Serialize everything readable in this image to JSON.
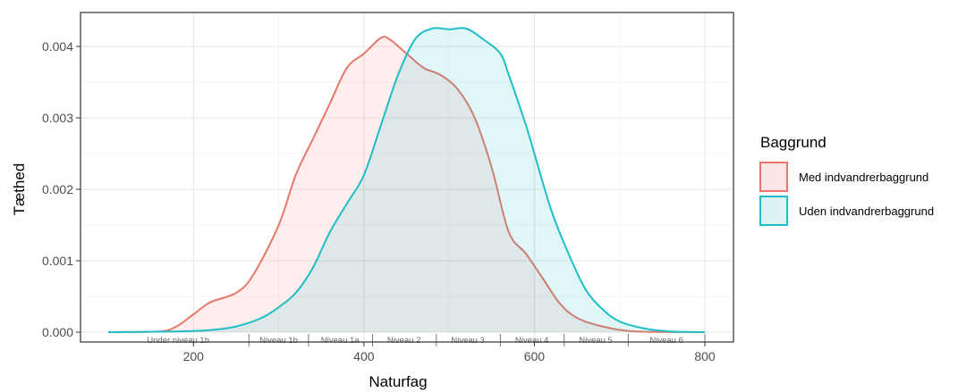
{
  "chart_data": {
    "type": "area",
    "xlabel": "Naturfag",
    "ylabel": "Tæthed",
    "xlim": [
      100,
      800
    ],
    "ylim": [
      0,
      0.0045
    ],
    "x_ticks": [
      200,
      400,
      600,
      800
    ],
    "y_ticks": [
      0.0,
      0.001,
      0.002,
      0.003,
      0.004
    ],
    "y_tick_labels": [
      "0.000",
      "0.001",
      "0.002",
      "0.003",
      "0.004"
    ],
    "x_tick_labels": [
      "200",
      "400",
      "600",
      "800"
    ],
    "grid": true,
    "legend": {
      "title": "Baggrund",
      "position": "right"
    },
    "series": [
      {
        "name": "Med indvandrerbaggrund",
        "color": "#E8776A",
        "fill": "#F8766D",
        "points": [
          [
            100,
            0
          ],
          [
            160,
            1e-05
          ],
          [
            180,
            8e-05
          ],
          [
            200,
            0.00025
          ],
          [
            220,
            0.00042
          ],
          [
            250,
            0.00055
          ],
          [
            270,
            0.0008
          ],
          [
            300,
            0.0015
          ],
          [
            320,
            0.0022
          ],
          [
            340,
            0.0027
          ],
          [
            360,
            0.0032
          ],
          [
            380,
            0.0037
          ],
          [
            400,
            0.0039
          ],
          [
            420,
            0.00412
          ],
          [
            430,
            0.0041
          ],
          [
            450,
            0.0039
          ],
          [
            470,
            0.0037
          ],
          [
            490,
            0.0036
          ],
          [
            510,
            0.0034
          ],
          [
            530,
            0.003
          ],
          [
            550,
            0.0023
          ],
          [
            570,
            0.0014
          ],
          [
            590,
            0.0011
          ],
          [
            610,
            0.00075
          ],
          [
            630,
            0.0004
          ],
          [
            650,
            0.0002
          ],
          [
            680,
            8e-05
          ],
          [
            720,
            1e-05
          ],
          [
            800,
            0
          ]
        ]
      },
      {
        "name": "Uden indvandrerbaggrund",
        "color": "#1EBEC6",
        "fill": "#00BFC4",
        "points": [
          [
            100,
            0
          ],
          [
            180,
            1e-05
          ],
          [
            220,
            3e-05
          ],
          [
            250,
            8e-05
          ],
          [
            280,
            0.0002
          ],
          [
            300,
            0.00035
          ],
          [
            320,
            0.00055
          ],
          [
            340,
            0.0009
          ],
          [
            360,
            0.0014
          ],
          [
            380,
            0.0018
          ],
          [
            400,
            0.0022
          ],
          [
            420,
            0.0029
          ],
          [
            440,
            0.0036
          ],
          [
            460,
            0.0041
          ],
          [
            480,
            0.00425
          ],
          [
            500,
            0.00424
          ],
          [
            520,
            0.00425
          ],
          [
            540,
            0.0041
          ],
          [
            560,
            0.0039
          ],
          [
            570,
            0.0036
          ],
          [
            590,
            0.0029
          ],
          [
            600,
            0.0025
          ],
          [
            620,
            0.0017
          ],
          [
            640,
            0.0011
          ],
          [
            660,
            0.0006
          ],
          [
            680,
            0.00032
          ],
          [
            700,
            0.00015
          ],
          [
            730,
            5e-05
          ],
          [
            760,
            1e-05
          ],
          [
            800,
            0
          ]
        ]
      }
    ],
    "level_boundaries": [
      265,
      335,
      410,
      485,
      560,
      635,
      710,
      800
    ],
    "level_labels": [
      {
        "label": "Under niveau 1b",
        "x": 182
      },
      {
        "label": "Niveau 1b",
        "x": 300
      },
      {
        "label": "Niveau 1a",
        "x": 372
      },
      {
        "label": "Niveau 2",
        "x": 447
      },
      {
        "label": "Niveau 3",
        "x": 522
      },
      {
        "label": "Niveau 4",
        "x": 597
      },
      {
        "label": "Niveau 5",
        "x": 672
      },
      {
        "label": "Niveau 6",
        "x": 755
      }
    ]
  }
}
